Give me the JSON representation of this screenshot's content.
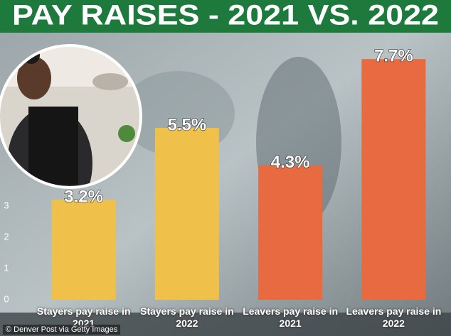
{
  "chart_data": {
    "type": "bar",
    "title": "PAY RAISES - 2021 VS. 2022",
    "categories": [
      "Stayers pay raise in 2021",
      "Stayers pay raise in 2022",
      "Leavers pay raise in 2021",
      "Leavers pay raise in 2022"
    ],
    "values": [
      3.2,
      5.5,
      4.3,
      7.7
    ],
    "value_labels": [
      "3.2%",
      "5.5%",
      "4.3%",
      "7.7%"
    ],
    "colors": [
      "#efc04a",
      "#efc04a",
      "#e86a40",
      "#e86a40"
    ],
    "ylim": [
      0,
      8
    ],
    "yticks": [
      0,
      1,
      2,
      3
    ],
    "credit": "© Denver Post via Getty Images"
  }
}
